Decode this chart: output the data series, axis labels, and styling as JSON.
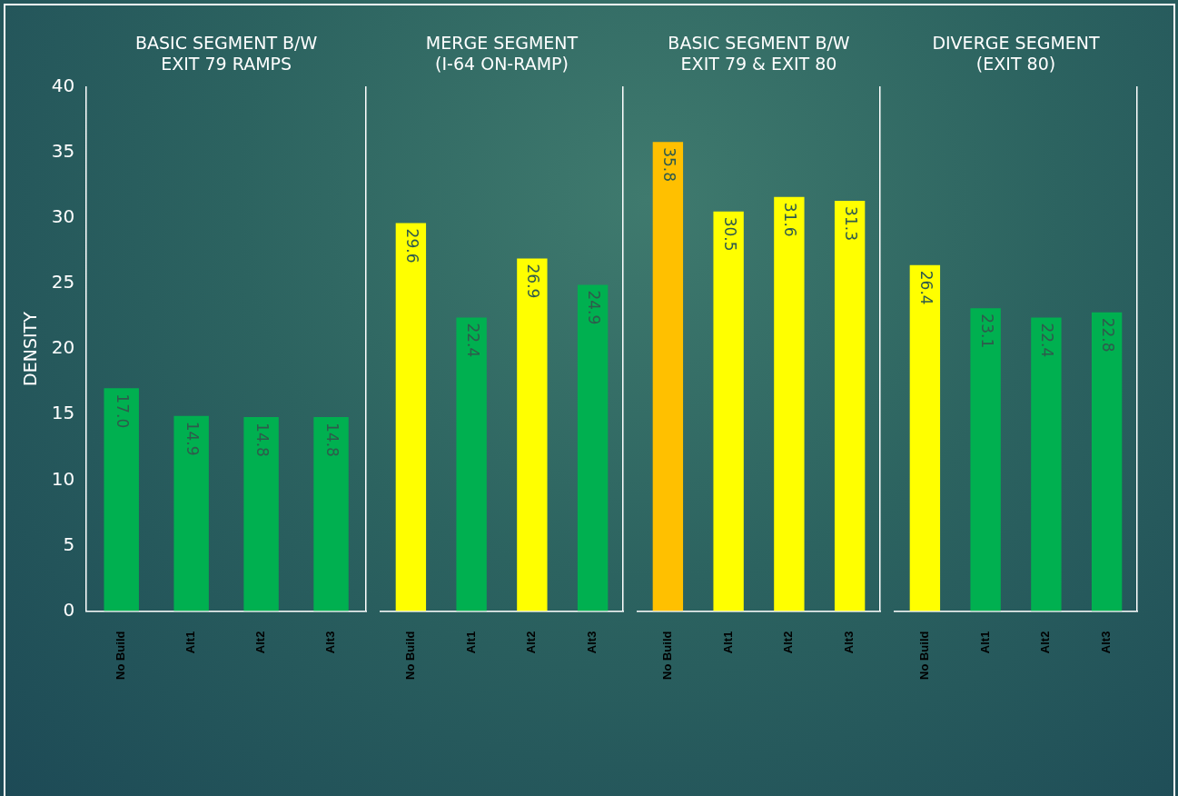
{
  "chart_data": [
    {
      "type": "bar",
      "title": "BASIC SEGMENT B/W EXIT 79 RAMPS",
      "ylabel": "DENSITY",
      "categories": [
        "No Build",
        "Alt1",
        "Alt2",
        "Alt3"
      ],
      "values": [
        17.0,
        14.9,
        14.8,
        14.8
      ],
      "value_labels": [
        "17.0",
        "14.9",
        "14.8",
        "14.8"
      ],
      "colors": [
        "#00b050",
        "#00b050",
        "#00b050",
        "#00b050"
      ],
      "ylim": [
        0,
        40
      ],
      "yticks": [
        0,
        5,
        10,
        15,
        20,
        25,
        30,
        35,
        40
      ],
      "grid": false,
      "legend": false
    },
    {
      "type": "bar",
      "title": "MERGE SEGMENT (I-64 ON-RAMP)",
      "categories": [
        "No Build",
        "Alt1",
        "Alt2",
        "Alt3"
      ],
      "values": [
        29.6,
        22.4,
        26.9,
        24.9
      ],
      "value_labels": [
        "29.6",
        "22.4",
        "26.9",
        "24.9"
      ],
      "colors": [
        "#ffff00",
        "#00b050",
        "#ffff00",
        "#00b050"
      ],
      "ylim": [
        0,
        40
      ],
      "yticks": [
        0,
        5,
        10,
        15,
        20,
        25,
        30,
        35,
        40
      ],
      "tick_labels": "x",
      "grid": false,
      "legend": false
    },
    {
      "type": "bar",
      "title": "BASIC SEGMENT B/W EXIT 79 & EXIT 80",
      "categories": [
        "No Build",
        "Alt1",
        "Alt2",
        "Alt3"
      ],
      "values": [
        35.8,
        30.5,
        31.6,
        31.3
      ],
      "value_labels": [
        "35.8",
        "30.5",
        "31.6",
        "31.3"
      ],
      "colors": [
        "#ffc000",
        "#ffff00",
        "#ffff00",
        "#ffff00"
      ],
      "ylim": [
        0,
        40
      ],
      "yticks": [
        0,
        5,
        10,
        15,
        20,
        25,
        30,
        35,
        40
      ],
      "tick_labels": "x",
      "grid": false,
      "legend": false
    },
    {
      "type": "bar",
      "title": "DIVERGE SEGMENT (EXIT 80)",
      "categories": [
        "No Build",
        "Alt1",
        "Alt2",
        "Alt3"
      ],
      "values": [
        26.4,
        23.1,
        22.4,
        22.8
      ],
      "value_labels": [
        "26.4",
        "23.1",
        "22.4",
        "22.8"
      ],
      "colors": [
        "#ffff00",
        "#00b050",
        "#00b050",
        "#00b050"
      ],
      "ylim": [
        0,
        40
      ],
      "yticks": [
        0,
        5,
        10,
        15,
        20,
        25,
        30,
        35,
        40
      ],
      "tick_labels": "x",
      "grid": false,
      "legend": false
    }
  ]
}
